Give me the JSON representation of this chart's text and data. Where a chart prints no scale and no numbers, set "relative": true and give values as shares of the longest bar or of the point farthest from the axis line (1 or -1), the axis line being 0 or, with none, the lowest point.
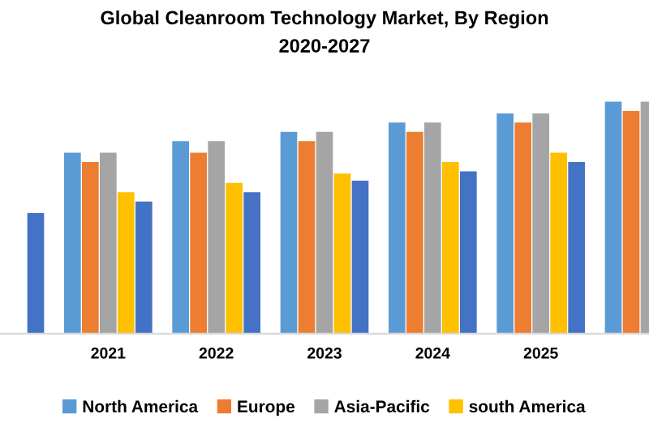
{
  "chart_data": {
    "type": "bar",
    "title": "Global Cleanroom Technology Market, By Region",
    "subtitle": "2020-2027",
    "relative": true,
    "categories": [
      null,
      "2021",
      "2022",
      "2023",
      "2024",
      "2025",
      null
    ],
    "series": [
      {
        "name": "North America",
        "color": "#5b9bd5",
        "values": [
          null,
          0.78,
          0.83,
          0.87,
          0.91,
          0.95,
          1.0
        ]
      },
      {
        "name": "Europe",
        "color": "#ed7d31",
        "values": [
          null,
          0.74,
          0.78,
          0.83,
          0.87,
          0.91,
          0.96
        ]
      },
      {
        "name": "Asia-Pacific",
        "color": "#a5a5a5",
        "values": [
          null,
          0.78,
          0.83,
          0.87,
          0.91,
          0.95,
          1.0
        ]
      },
      {
        "name": "south America",
        "color": "#ffc000",
        "values": [
          null,
          0.61,
          0.65,
          0.69,
          0.74,
          0.78,
          null
        ]
      },
      {
        "color": "#4472c4",
        "values": [
          0.52,
          0.57,
          0.61,
          0.66,
          0.7,
          0.74,
          null
        ]
      }
    ],
    "grid": false,
    "legend": "bottom"
  }
}
